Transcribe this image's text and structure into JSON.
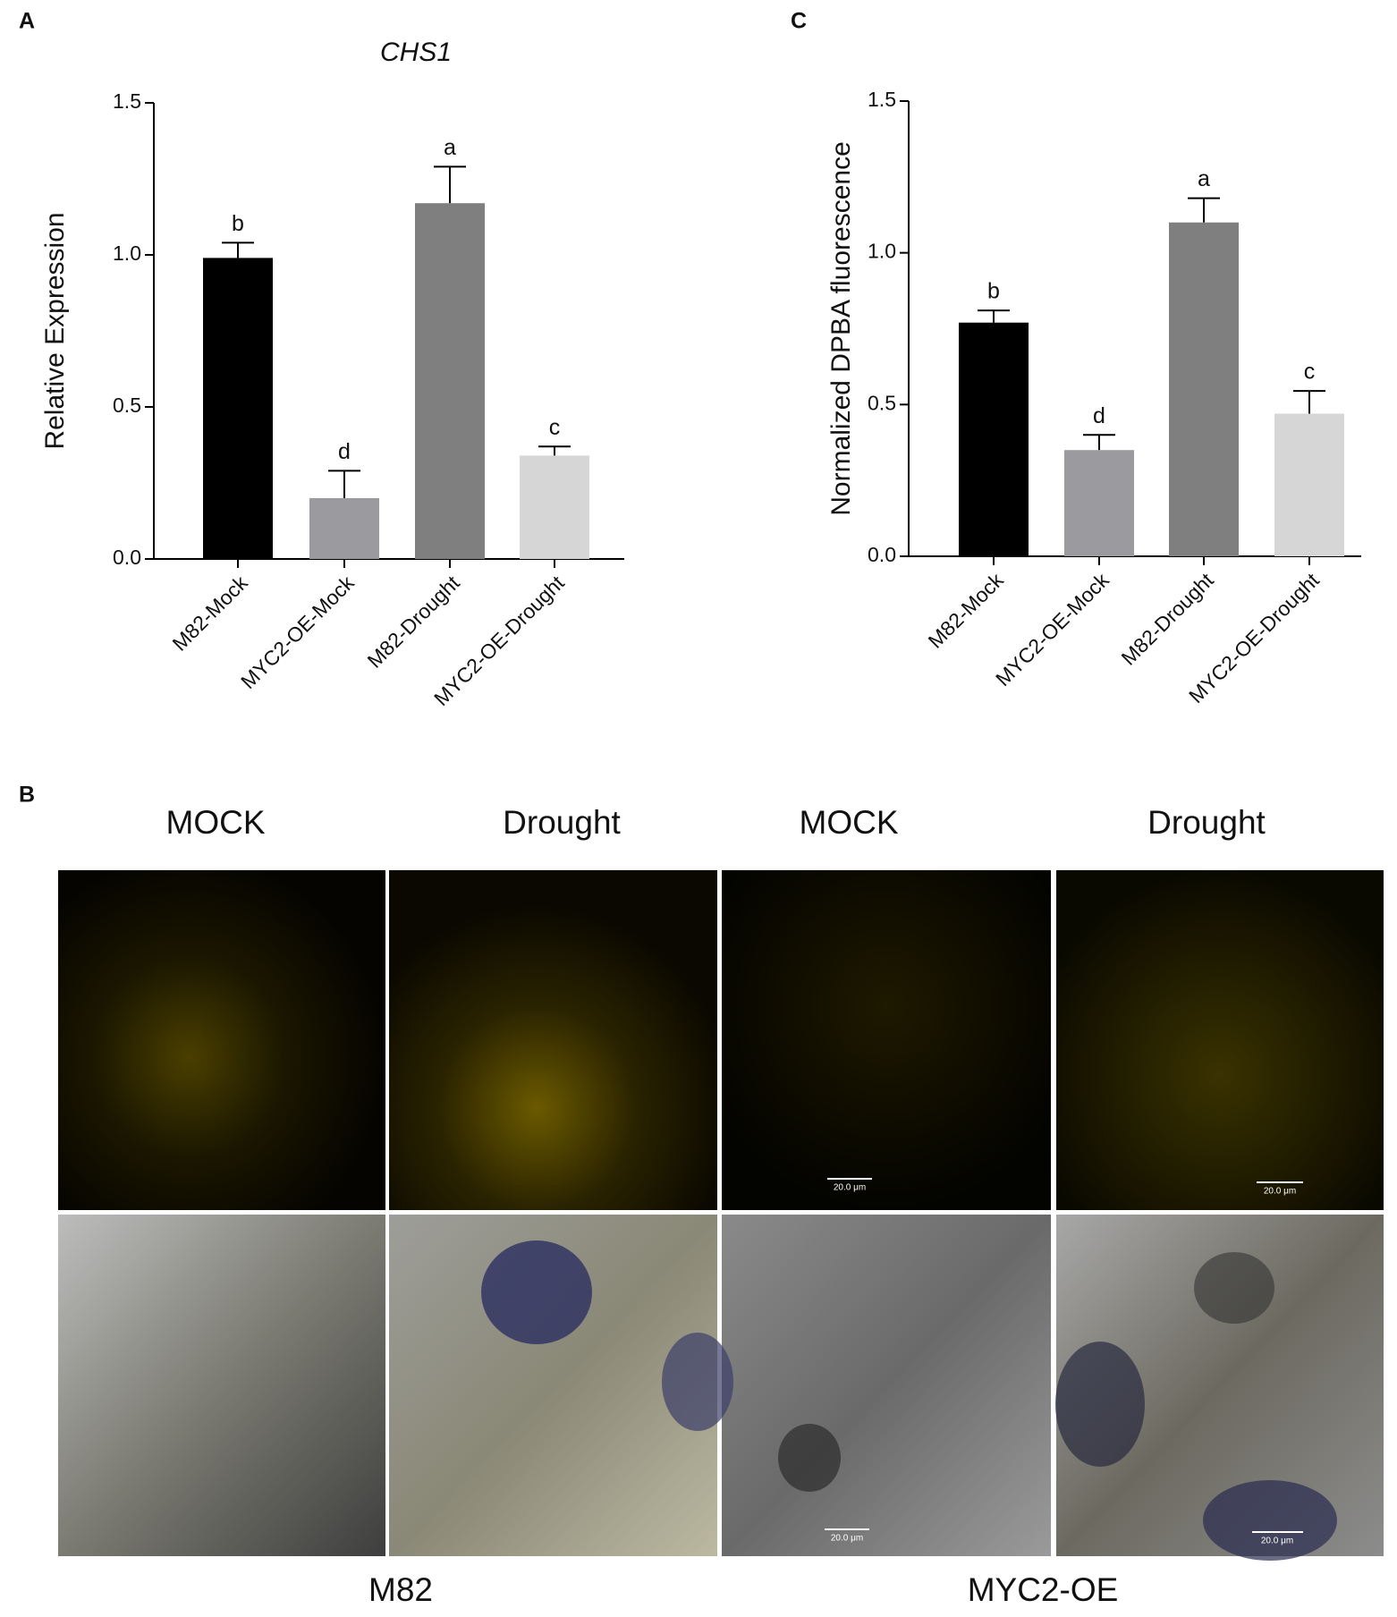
{
  "chart_data": [
    {
      "type": "bar",
      "panel_label": "A",
      "title": "CHS1",
      "y_label": "Relative Expression",
      "categories": [
        "M82-Mock",
        "MYC2-OE-Mock",
        "M82-Drought",
        "MYC2-OE-Drought"
      ],
      "values": [
        0.99,
        0.2,
        1.17,
        0.34
      ],
      "errors": [
        0.05,
        0.09,
        0.12,
        0.03
      ],
      "annotations": [
        "b",
        "d",
        "a",
        "c"
      ],
      "colors": [
        "#000000",
        "#9b9b9f",
        "#7f7f7f",
        "#d6d6d6"
      ],
      "ylim": [
        0,
        1.5
      ],
      "yticks": [
        {
          "value": 0,
          "label": "0.0"
        },
        0.5,
        {
          "value": 1,
          "label": "1.0"
        },
        1.5
      ],
      "grid": false
    },
    {
      "type": "bar",
      "panel_label": "C",
      "y_label": "Normalized DPBA fluorescence",
      "categories": [
        "M82-Mock",
        "MYC2-OE-Mock",
        "M82-Drought",
        "MYC2-OE-Drought"
      ],
      "values": [
        0.77,
        0.35,
        1.1,
        0.47
      ],
      "errors": [
        0.04,
        0.05,
        0.08,
        0.075
      ],
      "annotations": [
        "b",
        "d",
        "a",
        "c"
      ],
      "colors": [
        "#000000",
        "#9b9b9f",
        "#7f7f7f",
        "#d6d6d6"
      ],
      "ylim": [
        0,
        1.5
      ],
      "yticks": [
        {
          "value": 0,
          "label": "0.0"
        },
        0.5,
        {
          "value": 1,
          "label": "1.0"
        },
        1.5
      ],
      "grid": false
    }
  ],
  "panel_b": {
    "panel_label": "B",
    "column_headers": [
      "MOCK",
      "Drought",
      "MOCK",
      "Drought"
    ],
    "genotypes": [
      "M82",
      "MYC2-OE"
    ],
    "scale_labels": [
      "20.0 μm",
      "20.0 μm",
      "20.0 μm",
      "20.0 μm"
    ]
  }
}
